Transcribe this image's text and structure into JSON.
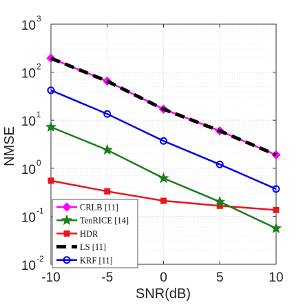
{
  "chart_data": {
    "type": "line",
    "xlabel": "SNR(dB)",
    "ylabel": "NMSE",
    "x": [
      -10,
      -5,
      0,
      5,
      10
    ],
    "xlim": [
      -10,
      10
    ],
    "ylim": [
      0.01,
      1000
    ],
    "yscale": "log",
    "grid": true,
    "legend_position": "bottom-left",
    "x_tick_labels": [
      "-10",
      "-5",
      "0",
      "5",
      "10"
    ],
    "y_tick_labels": [
      {
        "base": "10",
        "exp": "-2"
      },
      {
        "base": "10",
        "exp": "-1"
      },
      {
        "base": "10",
        "exp": "0"
      },
      {
        "base": "10",
        "exp": "1"
      },
      {
        "base": "10",
        "exp": "2"
      },
      {
        "base": "10",
        "exp": "3"
      }
    ],
    "series": [
      {
        "name": "CRLB [11]",
        "values": [
          195,
          65,
          17,
          6,
          1.9
        ],
        "color": "#ff00ff",
        "marker": "diamond",
        "dash": "solid"
      },
      {
        "name": "TenRICE [14]",
        "values": [
          7.2,
          2.4,
          0.62,
          0.2,
          0.056
        ],
        "color": "#1a7f1a",
        "marker": "star",
        "dash": "solid"
      },
      {
        "name": "HDR",
        "values": [
          0.55,
          0.33,
          0.21,
          0.165,
          0.135
        ],
        "color": "#e8171c",
        "marker": "square",
        "dash": "solid"
      },
      {
        "name": "LS [11]",
        "values": [
          195,
          65,
          17,
          6,
          1.9
        ],
        "color": "#000000",
        "marker": "none",
        "dash": "dashed"
      },
      {
        "name": "KRF [11]",
        "values": [
          42,
          13.5,
          3.7,
          1.2,
          0.37
        ],
        "color": "#0000ee",
        "marker": "circle",
        "dash": "solid"
      }
    ]
  }
}
